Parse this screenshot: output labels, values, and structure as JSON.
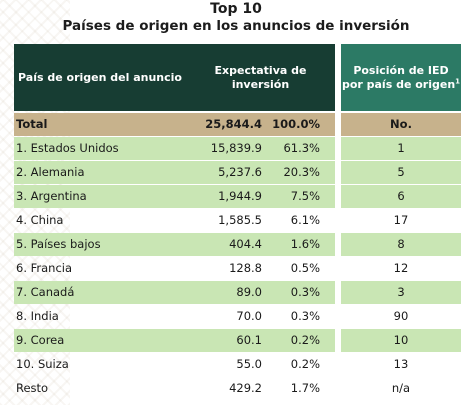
{
  "title": "Top 10",
  "subtitle": "Países de origen en los anuncios de inversión",
  "headers": {
    "country": "País de origen del anuncio",
    "expectation": "Expectativa de inversión",
    "ied_position": "Posición de IED por país de origen",
    "ied_footnote": "1"
  },
  "total": {
    "name": "Total",
    "value": "25,844.4",
    "pct": "100.0%",
    "rank": "No."
  },
  "rows": [
    {
      "name": "1. Estados Unidos",
      "value": "15,839.9",
      "pct": "61.3%",
      "rank": "1"
    },
    {
      "name": "2. Alemania",
      "value": "5,237.6",
      "pct": "20.3%",
      "rank": "5"
    },
    {
      "name": "3. Argentina",
      "value": "1,944.9",
      "pct": "7.5%",
      "rank": "6"
    },
    {
      "name": "4. China",
      "value": "1,585.5",
      "pct": "6.1%",
      "rank": "17"
    },
    {
      "name": "5. Países bajos",
      "value": "404.4",
      "pct": "1.6%",
      "rank": "8"
    },
    {
      "name": "6. Francia",
      "value": "128.8",
      "pct": "0.5%",
      "rank": "12"
    },
    {
      "name": "7. Canadá",
      "value": "89.0",
      "pct": "0.3%",
      "rank": "3"
    },
    {
      "name": "8. India",
      "value": "70.0",
      "pct": "0.3%",
      "rank": "90"
    },
    {
      "name": "9. Corea",
      "value": "60.1",
      "pct": "0.2%",
      "rank": "10"
    },
    {
      "name": "10. Suiza",
      "value": "55.0",
      "pct": "0.2%",
      "rank": "13"
    },
    {
      "name": "Resto",
      "value": "429.2",
      "pct": "1.7%",
      "rank": "n/a"
    }
  ],
  "colors": {
    "header_dark": "#173d33",
    "header_teal": "#2c7a65",
    "row_green": "#c9e6b4",
    "total_tan": "#c7b28c"
  }
}
